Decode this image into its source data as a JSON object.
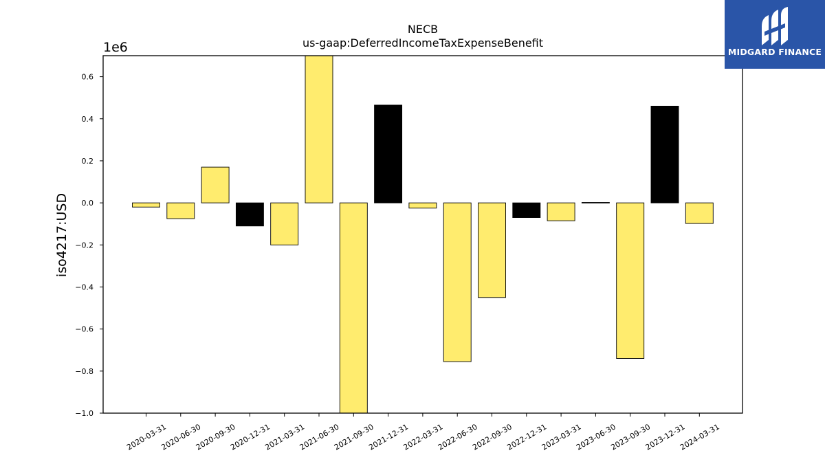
{
  "chart_data": {
    "type": "bar",
    "title": "NECB",
    "subtitle": "us-gaap:DeferredIncomeTaxExpenseBenefit",
    "ylabel": "iso4217:USD",
    "xlabel": "",
    "y_multiplier_label": "1e6",
    "ylim": [
      -1.0,
      0.7
    ],
    "yticks": [
      -1.0,
      -0.8,
      -0.6,
      -0.4,
      -0.2,
      0.0,
      0.2,
      0.4,
      0.6
    ],
    "ytick_labels": [
      "−1.0",
      "−0.8",
      "−0.6",
      "−0.4",
      "−0.2",
      "0.0",
      "0.2",
      "0.4",
      "0.6"
    ],
    "categories": [
      "2020-03-31",
      "2020-06-30",
      "2020-09-30",
      "2020-12-31",
      "2021-03-31",
      "2021-06-30",
      "2021-09-30",
      "2021-12-31",
      "2022-03-31",
      "2022-06-30",
      "2022-09-30",
      "2022-12-31",
      "2023-03-31",
      "2023-06-30",
      "2023-09-30",
      "2023-12-31",
      "2024-03-31"
    ],
    "values": [
      -0.02,
      -0.075,
      0.17,
      -0.11,
      -0.2,
      0.72,
      -1.0,
      0.465,
      -0.025,
      -0.755,
      -0.45,
      -0.07,
      -0.085,
      0.002,
      -0.74,
      0.46,
      -0.098
    ],
    "bar_colors": [
      "#ffec6e",
      "#ffec6e",
      "#ffec6e",
      "#000000",
      "#ffec6e",
      "#ffec6e",
      "#ffec6e",
      "#000000",
      "#ffec6e",
      "#ffec6e",
      "#ffec6e",
      "#000000",
      "#ffec6e",
      "#000000",
      "#ffec6e",
      "#000000",
      "#ffec6e"
    ],
    "grid": false,
    "legend": "none"
  },
  "logo": {
    "text": "MIDGARD FINANCE",
    "background": "#2a55a8"
  }
}
